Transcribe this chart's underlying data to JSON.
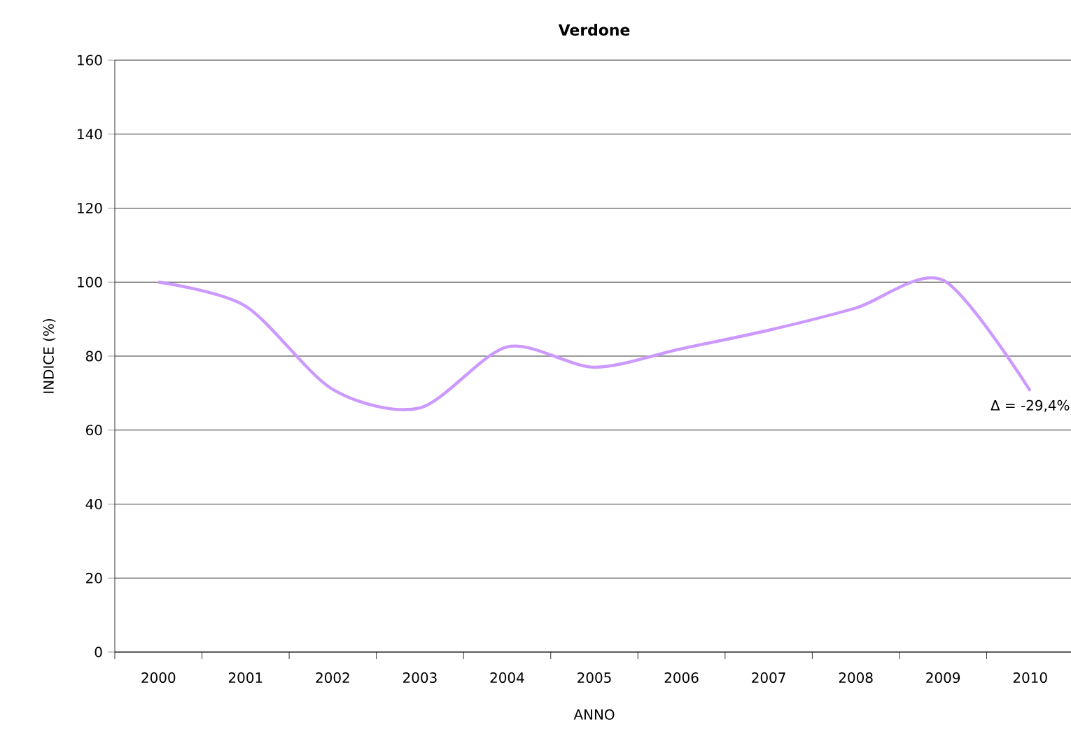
{
  "chart_data": {
    "type": "line",
    "title": "Verdone",
    "xlabel": "ANNO",
    "ylabel": "INDICE (%)",
    "categories": [
      "2000",
      "2001",
      "2002",
      "2003",
      "2004",
      "2005",
      "2006",
      "2007",
      "2008",
      "2009",
      "2010"
    ],
    "series": [
      {
        "color": "#cc99ff",
        "values": [
          100,
          93.5,
          71,
          66,
          82.5,
          77,
          82,
          87,
          93,
          100.5,
          70.6
        ]
      }
    ],
    "ylim": [
      0,
      160
    ],
    "yticks": [
      0,
      20,
      40,
      60,
      80,
      100,
      120,
      140,
      160
    ],
    "grid": "y",
    "marker": "none",
    "line_style": "solid",
    "annotations": [
      {
        "text": "Δ = -29,4%",
        "x": "2010",
        "y": 70.6
      }
    ]
  }
}
